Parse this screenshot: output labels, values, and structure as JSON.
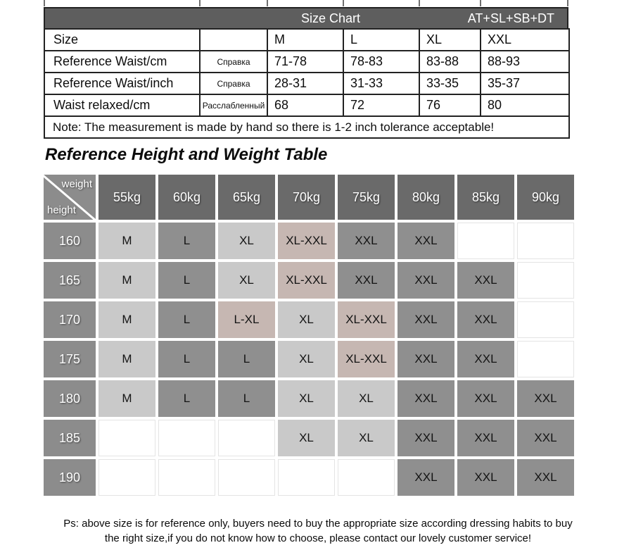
{
  "size_chart": {
    "header": {
      "title": "Size Chart",
      "code": "AT+SL+SB+DT"
    },
    "rows": [
      {
        "label": "Size",
        "note": "",
        "values": [
          "M",
          "L",
          "XL",
          "XXL"
        ]
      },
      {
        "label": "Reference Waist/cm",
        "note": "Справка",
        "values": [
          "71-78",
          "78-83",
          "83-88",
          "88-93"
        ]
      },
      {
        "label": "Reference Waist/inch",
        "note": "Справка",
        "values": [
          "28-31",
          "31-33",
          "33-35",
          "35-37"
        ]
      },
      {
        "label": "Waist relaxed/cm",
        "note": "Расслабленный",
        "values": [
          "68",
          "72",
          "76",
          "80"
        ]
      }
    ],
    "note": "Note: The measurement is made by hand so there is 1-2 inch tolerance acceptable!"
  },
  "hw_table": {
    "title": "Reference Height and Weight Table",
    "corner": {
      "top": "weight",
      "bottom": "height"
    },
    "weights": [
      "55kg",
      "60kg",
      "65kg",
      "70kg",
      "75kg",
      "80kg",
      "85kg",
      "90kg"
    ],
    "heights": [
      "160",
      "165",
      "170",
      "175",
      "180",
      "185",
      "190"
    ],
    "cells": [
      [
        "M",
        "L",
        "XL",
        "XL-XXL",
        "XXL",
        "XXL",
        "",
        ""
      ],
      [
        "M",
        "L",
        "XL",
        "XL-XXL",
        "XXL",
        "XXL",
        "XXL",
        ""
      ],
      [
        "M",
        "L",
        "L-XL",
        "XL",
        "XL-XXL",
        "XXL",
        "XXL",
        ""
      ],
      [
        "M",
        "L",
        "L",
        "XL",
        "XL-XXL",
        "XXL",
        "XXL",
        ""
      ],
      [
        "M",
        "L",
        "L",
        "XL",
        "XL",
        "XXL",
        "XXL",
        "XXL"
      ],
      [
        "",
        "",
        "",
        "XL",
        "XL",
        "XXL",
        "XXL",
        "XXL"
      ],
      [
        "",
        "",
        "",
        "",
        "",
        "XXL",
        "XXL",
        "XXL"
      ]
    ]
  },
  "footer": {
    "line1": "Ps: above size is for reference only, buyers need to buy the appropriate size according dressing habits to buy",
    "line2": "the right size,if you do not know how to choose, please contact our lovely customer service!"
  },
  "colors": {
    "header_bar": "#5e5e5e",
    "col_header": "#6a6a6a",
    "row_header": "#8c8c8c",
    "cell_light": "#c9c9c9",
    "cell_mid": "#8f8f8f",
    "cell_combo": "#c6b7b2",
    "cell_empty": "#ffffff",
    "border_dark": "#222222"
  }
}
